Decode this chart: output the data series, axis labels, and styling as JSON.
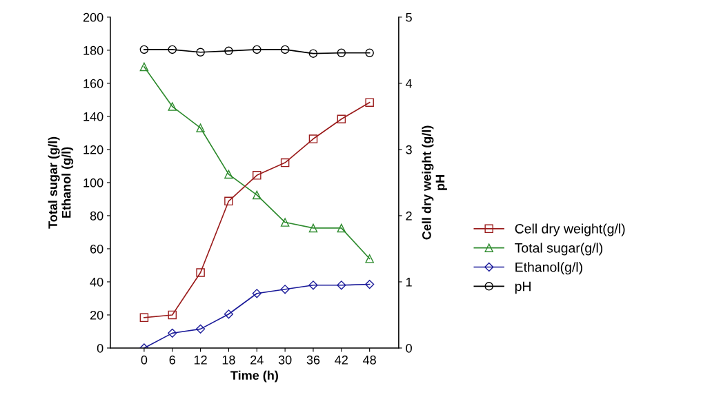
{
  "chart_data": {
    "type": "line",
    "xlabel": "Time (h)",
    "ylabel": "Total sugar (g/l)\nEthanol (g/l)",
    "y2label": "Cell dry weight (g/l)\npH",
    "x": [
      0,
      6,
      12,
      18,
      24,
      30,
      36,
      42,
      48
    ],
    "xlim": [
      -7.2,
      54.2
    ],
    "xticks": [
      0,
      6,
      12,
      18,
      24,
      30,
      36,
      42,
      48
    ],
    "ylim": [
      0,
      200
    ],
    "yticks": [
      0,
      20,
      40,
      60,
      80,
      100,
      120,
      140,
      160,
      180,
      200
    ],
    "y2lim": [
      0,
      5
    ],
    "y2ticks": [
      0,
      1,
      2,
      3,
      4,
      5
    ],
    "grid": false,
    "legend": "right",
    "line_style": "solid",
    "series": [
      {
        "name": "Cell dry weight(g/l)",
        "color": "#9b1c1c",
        "marker": "square",
        "axis": "y2",
        "values": [
          0.46,
          0.5,
          1.14,
          2.22,
          2.61,
          2.8,
          3.16,
          3.46,
          3.71
        ]
      },
      {
        "name": "Total sugar(g/l)",
        "color": "#2e8b2e",
        "marker": "triangle",
        "values": [
          170,
          146,
          133,
          105,
          92.5,
          76,
          72.5,
          72.5,
          54
        ]
      },
      {
        "name": "Ethanol(g/l)",
        "color": "#1a1a99",
        "marker": "diamond",
        "values": [
          0,
          9,
          11.5,
          20.5,
          33,
          35.5,
          38,
          38,
          38.5
        ]
      },
      {
        "name": "pH",
        "color": "#000000",
        "marker": "circle",
        "axis": "y2",
        "values": [
          4.51,
          4.51,
          4.47,
          4.49,
          4.51,
          4.51,
          4.45,
          4.46,
          4.46
        ]
      }
    ]
  }
}
